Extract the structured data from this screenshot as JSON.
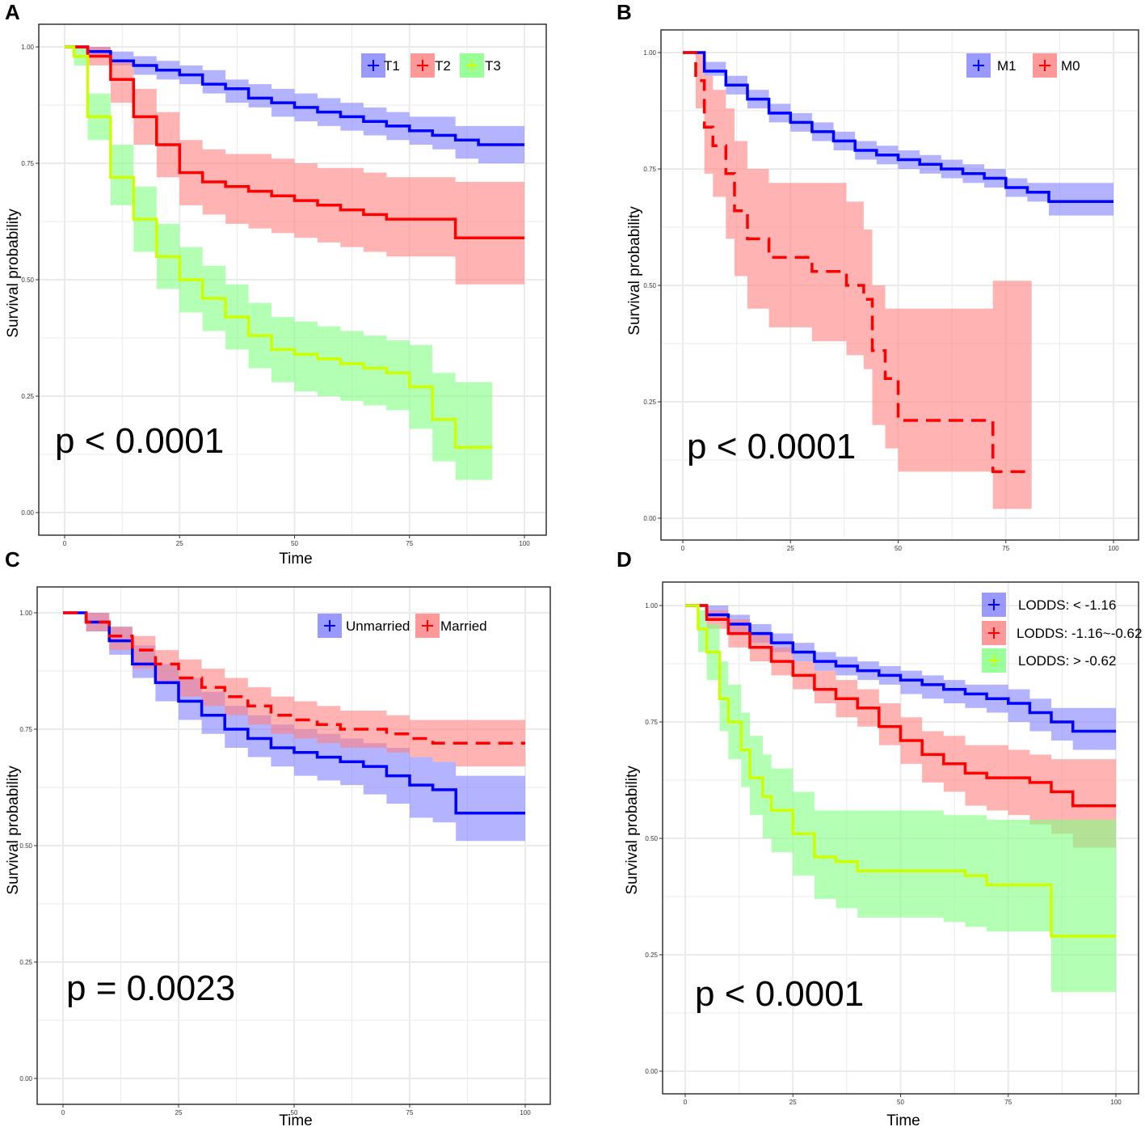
{
  "chart_data": [
    {
      "panel": "A",
      "type": "line",
      "subtype": "kaplan-meier",
      "xlabel": "Time",
      "ylabel": "Survival probability",
      "xlim": [
        0,
        100
      ],
      "ylim": [
        0,
        1
      ],
      "xticks": [
        "0",
        "25",
        "50",
        "75",
        "100"
      ],
      "yticks": [
        "0.00",
        "0.25",
        "0.50",
        "0.75",
        "1.00"
      ],
      "pvalue": "p < 0.0001",
      "legend": [
        "T1",
        "T2",
        "T3"
      ],
      "series": [
        {
          "name": "T1",
          "color": "#0000ff",
          "fill": "#8080ff",
          "dashed": false,
          "x": [
            0,
            5,
            10,
            15,
            20,
            25,
            30,
            35,
            40,
            45,
            50,
            55,
            60,
            65,
            70,
            75,
            80,
            85,
            90,
            100
          ],
          "y": [
            1.0,
            0.99,
            0.97,
            0.96,
            0.95,
            0.94,
            0.92,
            0.91,
            0.89,
            0.88,
            0.87,
            0.86,
            0.85,
            0.84,
            0.83,
            0.82,
            0.81,
            0.8,
            0.79,
            0.79
          ],
          "lower": [
            1.0,
            0.98,
            0.96,
            0.94,
            0.93,
            0.92,
            0.9,
            0.88,
            0.87,
            0.85,
            0.84,
            0.83,
            0.82,
            0.81,
            0.8,
            0.79,
            0.78,
            0.76,
            0.75,
            0.75
          ],
          "upper": [
            1.0,
            1.0,
            0.99,
            0.98,
            0.97,
            0.96,
            0.95,
            0.93,
            0.92,
            0.91,
            0.9,
            0.89,
            0.88,
            0.87,
            0.86,
            0.85,
            0.85,
            0.83,
            0.83,
            0.83
          ]
        },
        {
          "name": "T2",
          "color": "#ff0000",
          "fill": "#ff8080",
          "dashed": false,
          "x": [
            0,
            5,
            10,
            15,
            20,
            25,
            30,
            35,
            40,
            45,
            50,
            55,
            60,
            65,
            70,
            75,
            80,
            85,
            100
          ],
          "y": [
            1.0,
            0.98,
            0.93,
            0.85,
            0.79,
            0.73,
            0.71,
            0.7,
            0.69,
            0.68,
            0.67,
            0.66,
            0.65,
            0.64,
            0.63,
            0.63,
            0.63,
            0.59,
            0.59
          ],
          "lower": [
            1.0,
            0.96,
            0.88,
            0.79,
            0.72,
            0.66,
            0.64,
            0.62,
            0.61,
            0.6,
            0.59,
            0.58,
            0.57,
            0.56,
            0.55,
            0.55,
            0.55,
            0.49,
            0.49
          ],
          "upper": [
            1.0,
            1.0,
            0.97,
            0.91,
            0.86,
            0.8,
            0.78,
            0.77,
            0.77,
            0.76,
            0.75,
            0.74,
            0.74,
            0.73,
            0.72,
            0.72,
            0.72,
            0.71,
            0.71
          ]
        },
        {
          "name": "T3",
          "color": "#ccff00",
          "fill": "#80ff80",
          "dashed": false,
          "x": [
            0,
            2,
            5,
            10,
            15,
            20,
            25,
            30,
            35,
            40,
            45,
            50,
            55,
            60,
            65,
            70,
            75,
            80,
            85,
            93
          ],
          "y": [
            1.0,
            0.98,
            0.85,
            0.72,
            0.63,
            0.55,
            0.5,
            0.46,
            0.42,
            0.38,
            0.35,
            0.34,
            0.33,
            0.32,
            0.31,
            0.3,
            0.27,
            0.2,
            0.14,
            0.14
          ],
          "lower": [
            1.0,
            0.96,
            0.8,
            0.66,
            0.56,
            0.48,
            0.43,
            0.39,
            0.35,
            0.31,
            0.28,
            0.26,
            0.25,
            0.24,
            0.23,
            0.22,
            0.18,
            0.11,
            0.07,
            0.07
          ],
          "upper": [
            1.0,
            1.0,
            0.9,
            0.79,
            0.7,
            0.62,
            0.57,
            0.53,
            0.49,
            0.45,
            0.42,
            0.41,
            0.4,
            0.39,
            0.38,
            0.37,
            0.36,
            0.3,
            0.28,
            0.28
          ]
        }
      ]
    },
    {
      "panel": "B",
      "type": "line",
      "subtype": "kaplan-meier",
      "xlabel": "",
      "ylabel": "Survival probability",
      "xlim": [
        0,
        100
      ],
      "ylim": [
        0,
        1
      ],
      "xticks": [
        "0",
        "25",
        "50",
        "75",
        "100"
      ],
      "yticks": [
        "0.00",
        "0.25",
        "0.50",
        "0.75",
        "1.00"
      ],
      "pvalue": "p < 0.0001",
      "legend": [
        "M1",
        "M0"
      ],
      "series": [
        {
          "name": "M1",
          "color": "#0000ff",
          "fill": "#8080ff",
          "dashed": false,
          "x": [
            0,
            5,
            10,
            15,
            20,
            25,
            30,
            35,
            40,
            45,
            50,
            55,
            60,
            65,
            70,
            75,
            80,
            85,
            100
          ],
          "y": [
            1.0,
            0.96,
            0.93,
            0.9,
            0.87,
            0.85,
            0.83,
            0.81,
            0.79,
            0.78,
            0.77,
            0.76,
            0.75,
            0.74,
            0.73,
            0.71,
            0.7,
            0.68,
            0.68
          ],
          "lower": [
            1.0,
            0.95,
            0.91,
            0.88,
            0.85,
            0.83,
            0.81,
            0.79,
            0.77,
            0.76,
            0.75,
            0.74,
            0.73,
            0.72,
            0.71,
            0.69,
            0.68,
            0.65,
            0.65
          ],
          "upper": [
            1.0,
            0.98,
            0.95,
            0.92,
            0.89,
            0.87,
            0.85,
            0.83,
            0.81,
            0.8,
            0.79,
            0.78,
            0.77,
            0.76,
            0.75,
            0.73,
            0.72,
            0.72,
            0.72
          ]
        },
        {
          "name": "M0",
          "color": "#ff0000",
          "fill": "#ff8080",
          "dashed": true,
          "x": [
            0,
            3,
            5,
            7,
            10,
            12,
            15,
            20,
            30,
            38,
            42,
            44,
            47,
            50,
            72,
            81
          ],
          "y": [
            1.0,
            0.94,
            0.84,
            0.8,
            0.74,
            0.66,
            0.6,
            0.56,
            0.53,
            0.5,
            0.47,
            0.36,
            0.3,
            0.21,
            0.1,
            0.1
          ],
          "lower": [
            1.0,
            0.88,
            0.74,
            0.69,
            0.6,
            0.52,
            0.45,
            0.41,
            0.38,
            0.35,
            0.32,
            0.2,
            0.15,
            0.1,
            0.02,
            0.02
          ],
          "upper": [
            1.0,
            1.0,
            0.95,
            0.92,
            0.88,
            0.81,
            0.75,
            0.72,
            0.72,
            0.68,
            0.62,
            0.5,
            0.45,
            0.45,
            0.51,
            0.51
          ]
        }
      ]
    },
    {
      "panel": "C",
      "type": "line",
      "subtype": "kaplan-meier",
      "xlabel": "Time",
      "ylabel": "Survival probability",
      "xlim": [
        0,
        100
      ],
      "ylim": [
        0,
        1
      ],
      "xticks": [
        "0",
        "25",
        "50",
        "75",
        "100"
      ],
      "yticks": [
        "0.00",
        "0.25",
        "0.50",
        "0.75",
        "1.00"
      ],
      "pvalue": "p = 0.0023",
      "legend": [
        "Unmarried",
        "Married"
      ],
      "series": [
        {
          "name": "Unmarried",
          "color": "#0000ff",
          "fill": "#8080ff",
          "dashed": false,
          "x": [
            0,
            5,
            10,
            15,
            20,
            25,
            30,
            35,
            40,
            45,
            50,
            55,
            60,
            65,
            70,
            75,
            80,
            85,
            100
          ],
          "y": [
            1.0,
            0.98,
            0.94,
            0.89,
            0.85,
            0.81,
            0.78,
            0.75,
            0.73,
            0.71,
            0.7,
            0.69,
            0.68,
            0.67,
            0.65,
            0.63,
            0.62,
            0.57,
            0.57
          ],
          "lower": [
            1.0,
            0.96,
            0.91,
            0.86,
            0.81,
            0.77,
            0.74,
            0.71,
            0.69,
            0.67,
            0.65,
            0.64,
            0.63,
            0.61,
            0.59,
            0.56,
            0.55,
            0.51,
            0.51
          ],
          "upper": [
            1.0,
            1.0,
            0.97,
            0.93,
            0.89,
            0.86,
            0.83,
            0.8,
            0.78,
            0.76,
            0.75,
            0.74,
            0.73,
            0.72,
            0.71,
            0.69,
            0.68,
            0.65,
            0.65
          ]
        },
        {
          "name": "Married",
          "color": "#ff0000",
          "fill": "#ff8080",
          "dashed": true,
          "x": [
            0,
            5,
            10,
            15,
            20,
            25,
            30,
            35,
            40,
            45,
            50,
            55,
            60,
            65,
            70,
            75,
            80,
            85,
            100
          ],
          "y": [
            1.0,
            0.98,
            0.95,
            0.92,
            0.89,
            0.86,
            0.84,
            0.82,
            0.8,
            0.78,
            0.77,
            0.76,
            0.75,
            0.75,
            0.74,
            0.73,
            0.72,
            0.72,
            0.72
          ],
          "lower": [
            1.0,
            0.96,
            0.92,
            0.88,
            0.85,
            0.82,
            0.8,
            0.78,
            0.76,
            0.74,
            0.73,
            0.72,
            0.71,
            0.71,
            0.7,
            0.69,
            0.68,
            0.67,
            0.67
          ],
          "upper": [
            1.0,
            1.0,
            0.97,
            0.95,
            0.92,
            0.9,
            0.88,
            0.86,
            0.84,
            0.82,
            0.81,
            0.8,
            0.79,
            0.79,
            0.78,
            0.77,
            0.77,
            0.77,
            0.77
          ]
        }
      ]
    },
    {
      "panel": "D",
      "type": "line",
      "subtype": "kaplan-meier",
      "xlabel": "Time",
      "ylabel": "Survival probability",
      "xlim": [
        0,
        100
      ],
      "ylim": [
        0,
        1
      ],
      "xticks": [
        "0",
        "25",
        "50",
        "75",
        "100"
      ],
      "yticks": [
        "0.00",
        "0.25",
        "0.50",
        "0.75",
        "1.00"
      ],
      "pvalue": "p < 0.0001",
      "legend": [
        "LODDS: < -1.16",
        "LODDS: -1.16~-0.62",
        "LODDS: > -0.62"
      ],
      "series": [
        {
          "name": "LODDS: < -1.16",
          "color": "#0000ff",
          "fill": "#8080ff",
          "dashed": false,
          "x": [
            0,
            5,
            10,
            15,
            20,
            25,
            30,
            35,
            40,
            45,
            50,
            55,
            60,
            65,
            70,
            75,
            80,
            85,
            90,
            100
          ],
          "y": [
            1.0,
            0.98,
            0.96,
            0.94,
            0.92,
            0.9,
            0.88,
            0.87,
            0.86,
            0.85,
            0.84,
            0.83,
            0.82,
            0.81,
            0.8,
            0.79,
            0.77,
            0.75,
            0.73,
            0.73
          ],
          "lower": [
            1.0,
            0.97,
            0.94,
            0.92,
            0.9,
            0.88,
            0.86,
            0.85,
            0.84,
            0.83,
            0.81,
            0.8,
            0.79,
            0.78,
            0.77,
            0.75,
            0.73,
            0.71,
            0.69,
            0.69
          ],
          "upper": [
            1.0,
            1.0,
            0.98,
            0.96,
            0.94,
            0.92,
            0.9,
            0.89,
            0.88,
            0.87,
            0.86,
            0.85,
            0.84,
            0.83,
            0.83,
            0.82,
            0.8,
            0.78,
            0.78,
            0.78
          ]
        },
        {
          "name": "LODDS: -1.16~-0.62",
          "color": "#ff0000",
          "fill": "#ff8080",
          "dashed": false,
          "x": [
            0,
            5,
            10,
            15,
            20,
            25,
            30,
            35,
            40,
            45,
            50,
            55,
            60,
            65,
            70,
            75,
            80,
            85,
            90,
            100
          ],
          "y": [
            1.0,
            0.97,
            0.94,
            0.91,
            0.88,
            0.85,
            0.82,
            0.8,
            0.78,
            0.74,
            0.71,
            0.68,
            0.66,
            0.64,
            0.63,
            0.63,
            0.62,
            0.6,
            0.57,
            0.57
          ],
          "lower": [
            1.0,
            0.95,
            0.91,
            0.88,
            0.85,
            0.82,
            0.79,
            0.76,
            0.74,
            0.7,
            0.66,
            0.62,
            0.6,
            0.57,
            0.56,
            0.55,
            0.53,
            0.51,
            0.48,
            0.48
          ],
          "upper": [
            1.0,
            0.99,
            0.97,
            0.94,
            0.91,
            0.88,
            0.86,
            0.84,
            0.82,
            0.79,
            0.76,
            0.73,
            0.72,
            0.7,
            0.7,
            0.69,
            0.68,
            0.67,
            0.67,
            0.67
          ]
        },
        {
          "name": "LODDS: > -0.62",
          "color": "#ccff00",
          "fill": "#80ff80",
          "dashed": false,
          "x": [
            0,
            3,
            5,
            8,
            10,
            13,
            15,
            18,
            20,
            25,
            30,
            35,
            40,
            50,
            60,
            65,
            70,
            75,
            80,
            85,
            90,
            100
          ],
          "y": [
            1.0,
            0.95,
            0.9,
            0.8,
            0.75,
            0.69,
            0.63,
            0.59,
            0.56,
            0.51,
            0.46,
            0.45,
            0.43,
            0.43,
            0.43,
            0.42,
            0.4,
            0.4,
            0.4,
            0.29,
            0.29,
            0.29
          ],
          "lower": [
            1.0,
            0.9,
            0.84,
            0.73,
            0.67,
            0.61,
            0.55,
            0.5,
            0.47,
            0.42,
            0.37,
            0.35,
            0.33,
            0.33,
            0.32,
            0.31,
            0.3,
            0.3,
            0.3,
            0.17,
            0.17,
            0.17
          ],
          "upper": [
            1.0,
            0.99,
            0.96,
            0.88,
            0.83,
            0.77,
            0.72,
            0.68,
            0.65,
            0.6,
            0.56,
            0.56,
            0.56,
            0.56,
            0.55,
            0.55,
            0.54,
            0.54,
            0.54,
            0.54,
            0.54,
            0.54
          ]
        }
      ]
    }
  ]
}
